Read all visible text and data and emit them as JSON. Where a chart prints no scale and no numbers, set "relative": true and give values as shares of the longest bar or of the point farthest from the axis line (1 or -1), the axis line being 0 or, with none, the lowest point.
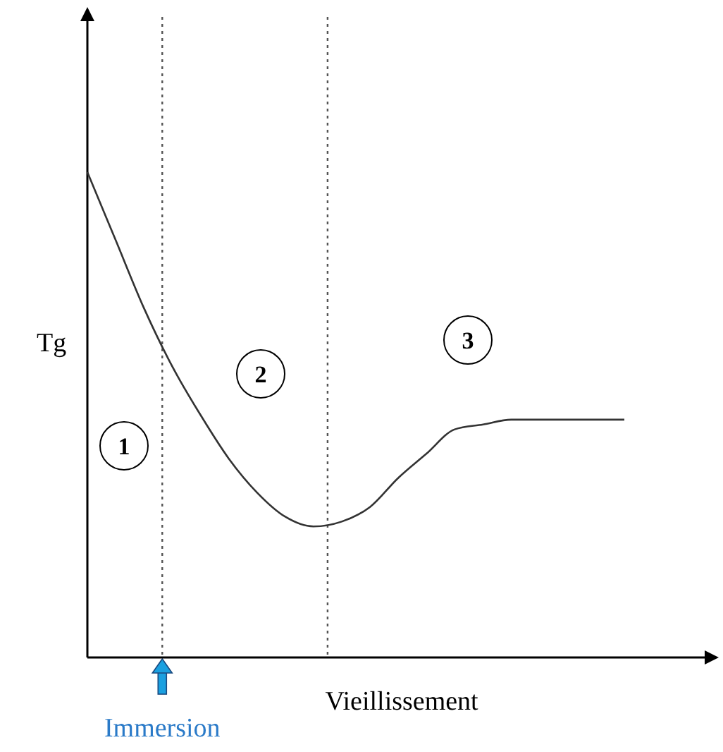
{
  "chart_data": {
    "type": "line",
    "relative": true,
    "xlabel": "Vieillissement",
    "ylabel": "Tg",
    "categories": [
      null,
      null,
      null,
      null,
      null,
      null,
      null,
      null,
      null,
      null,
      null,
      null,
      null,
      null,
      null,
      null,
      null,
      null,
      null,
      null
    ],
    "series": [
      {
        "color": "#333333",
        "values": [
          1.0,
          0.86,
          0.72,
          0.6,
          0.5,
          0.41,
          0.34,
          0.29,
          0.27,
          0.28,
          0.31,
          0.37,
          0.42,
          0.47,
          0.48,
          0.49,
          0.49,
          0.49,
          0.49,
          0.49
        ]
      }
    ],
    "annotations": [
      "1",
      "2",
      "3",
      "Immersion"
    ],
    "marker": "none",
    "line_style": "solid"
  }
}
